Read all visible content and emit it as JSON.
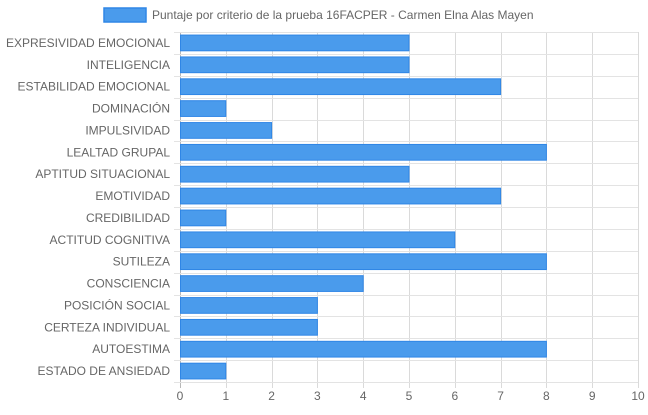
{
  "chart_data": {
    "type": "bar",
    "orientation": "horizontal",
    "legend": {
      "position": "top",
      "entries": [
        "Puntaje por criterio de la prueba 16FACPER - Carmen Elna Alas Mayen"
      ]
    },
    "series": [
      {
        "name": "Puntaje por criterio de la prueba 16FACPER - Carmen Elna Alas Mayen",
        "color": "#4a9bec",
        "border_color": "#2f86e6",
        "values": [
          5,
          5,
          7,
          1,
          2,
          8,
          5,
          7,
          1,
          6,
          8,
          4,
          3,
          3,
          8,
          1
        ]
      }
    ],
    "categories": [
      "EXPRESIVIDAD EMOCIONAL",
      "INTELIGENCIA",
      "ESTABILIDAD EMOCIONAL",
      "DOMINACIÓN",
      "IMPULSIVIDAD",
      "LEALTAD GRUPAL",
      "APTITUD SITUACIONAL",
      "EMOTIVIDAD",
      "CREDIBILIDAD",
      "ACTITUD COGNITIVA",
      "SUTILEZA",
      "CONSCIENCIA",
      "POSICIÓN SOCIAL",
      "CERTEZA INDIVIDUAL",
      "AUTOESTIMA",
      "ESTADO DE ANSIEDAD"
    ],
    "x_ticks": [
      "0",
      "1",
      "2",
      "3",
      "4",
      "5",
      "6",
      "7",
      "8",
      "9",
      "10"
    ],
    "xlim": [
      0,
      10
    ],
    "grid": true
  }
}
